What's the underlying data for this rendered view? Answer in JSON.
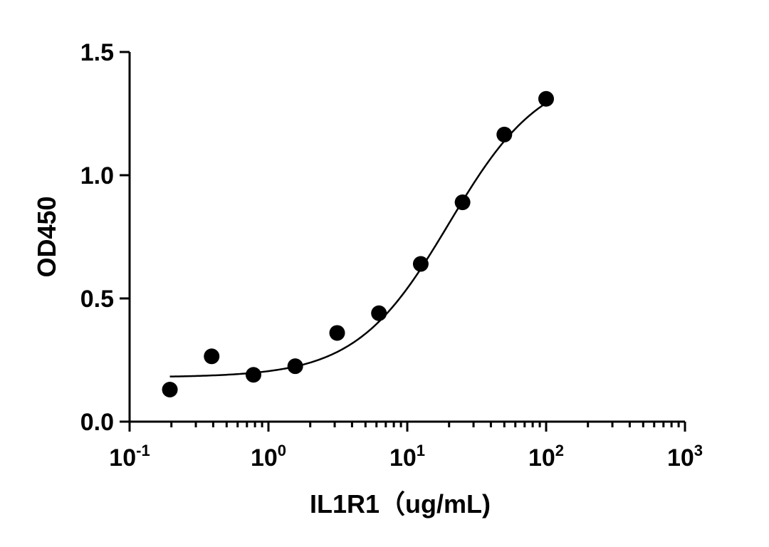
{
  "chart_data": {
    "type": "scatter",
    "x_scale": "log",
    "xlim": [
      0.1,
      1000
    ],
    "ylim": [
      0.0,
      1.5
    ],
    "xlabel": "IL1R1（ug/mL)",
    "ylabel": "OD450",
    "grid": false,
    "x_ticks": [
      {
        "value": 0.1,
        "base": "10",
        "exp": "-1"
      },
      {
        "value": 1,
        "base": "10",
        "exp": "0"
      },
      {
        "value": 10,
        "base": "10",
        "exp": "1"
      },
      {
        "value": 100,
        "base": "10",
        "exp": "2"
      },
      {
        "value": 1000,
        "base": "10",
        "exp": "3"
      }
    ],
    "y_ticks": [
      {
        "value": 0.0,
        "label": "0.0"
      },
      {
        "value": 0.5,
        "label": "0.5"
      },
      {
        "value": 1.0,
        "label": "1.0"
      },
      {
        "value": 1.5,
        "label": "1.5"
      }
    ],
    "series": [
      {
        "x": [
          0.195,
          0.39,
          0.78,
          1.56,
          3.125,
          6.25,
          12.5,
          25,
          50,
          100
        ],
        "y": [
          0.13,
          0.265,
          0.19,
          0.225,
          0.36,
          0.44,
          0.64,
          0.89,
          1.165,
          1.31
        ]
      }
    ],
    "fit_curve": {
      "model": "4PL",
      "bottom": 0.18,
      "top": 1.43,
      "ec50": 20,
      "hill": 1.3,
      "x_range": [
        0.195,
        100
      ]
    },
    "colors": {
      "points": "#000000",
      "curve": "#000000",
      "axes": "#000000"
    }
  }
}
